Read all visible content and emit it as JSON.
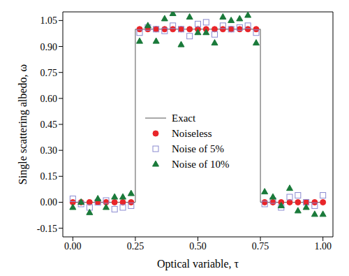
{
  "chart_data": {
    "type": "scatter",
    "x_label": "Optical variable, τ",
    "y_label": "Single scattering albedo, ω",
    "xlim": [
      -0.04,
      1.04
    ],
    "xticks": [
      {
        "value": 0,
        "label": "0.00"
      },
      0.25,
      {
        "value": 0.5,
        "label": "0.50"
      },
      0.75,
      {
        "value": 1,
        "label": "1.00"
      }
    ],
    "ylim": [
      -0.2,
      1.1
    ],
    "yticks": [
      -0.15,
      {
        "value": 0,
        "label": "0.00"
      },
      0.15,
      {
        "value": 0.3,
        "label": "0.30"
      },
      0.45,
      {
        "value": 0.6,
        "label": "0.60"
      },
      0.75,
      {
        "value": 0.9,
        "label": "0.90"
      },
      1.05
    ],
    "legend": "left",
    "x": [
      0,
      0.033,
      0.067,
      0.1,
      0.133,
      0.167,
      0.2,
      0.233,
      0.267,
      0.3,
      0.333,
      0.367,
      0.4,
      0.433,
      0.467,
      0.5,
      0.533,
      0.567,
      0.6,
      0.633,
      0.667,
      0.7,
      0.733,
      0.767,
      0.8,
      0.833,
      0.867,
      0.9,
      0.933,
      0.967,
      1.0
    ],
    "series": [
      {
        "name": "Exact",
        "type": "line",
        "line_style": "solid",
        "color": "#555555",
        "x": [
          0,
          0.25,
          0.25,
          0.75,
          0.75,
          1.0
        ],
        "values": [
          0,
          0,
          1,
          1,
          0,
          0
        ]
      },
      {
        "name": "Noiseless",
        "type": "scatter",
        "marker": "circle",
        "color": "#e8262a",
        "values": [
          0,
          0,
          0,
          0,
          0,
          0,
          0,
          0,
          1,
          1,
          1,
          1,
          1,
          1,
          1,
          1,
          1,
          1,
          1,
          1,
          1,
          1,
          1,
          0,
          0,
          0,
          0,
          0,
          0,
          0,
          0
        ]
      },
      {
        "name": "Noise of 5%",
        "type": "scatter",
        "marker": "square",
        "color": "#8a8ad0",
        "values": [
          0.02,
          -0.01,
          -0.03,
          0.0,
          0.01,
          -0.04,
          -0.03,
          -0.02,
          0.98,
          1.01,
          1.0,
          0.99,
          1.02,
          1.0,
          0.96,
          1.03,
          1.04,
          0.97,
          1.02,
          1.0,
          1.01,
          1.02,
          0.98,
          -0.01,
          0.01,
          -0.03,
          0.03,
          0.04,
          0.0,
          -0.02,
          0.04
        ]
      },
      {
        "name": "Noise of 10%",
        "type": "scatter",
        "marker": "triangle",
        "color": "#1a7a3a",
        "values": [
          -0.03,
          0.0,
          -0.06,
          0.02,
          -0.03,
          0.03,
          0.03,
          0.05,
          0.93,
          1.02,
          0.93,
          1.06,
          1.09,
          0.91,
          1.07,
          0.98,
          0.98,
          0.92,
          1.07,
          1.05,
          1.06,
          1.08,
          0.92,
          0.06,
          0.03,
          -0.02,
          0.08,
          -0.05,
          -0.03,
          -0.07,
          -0.07
        ]
      }
    ]
  }
}
